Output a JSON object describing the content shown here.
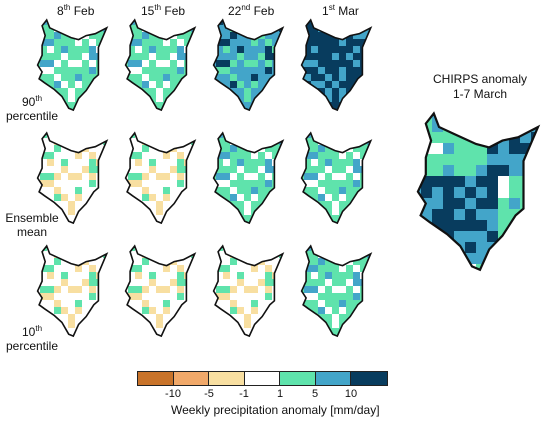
{
  "columns": [
    {
      "base": "8",
      "sup": "th",
      "rest": " Feb"
    },
    {
      "base": "15",
      "sup": "th",
      "rest": " Feb"
    },
    {
      "base": "22",
      "sup": "nd",
      "rest": " Feb"
    },
    {
      "base": "1",
      "sup": "st",
      "rest": " Mar"
    }
  ],
  "rows": [
    {
      "line1_base": "90",
      "line1_sup": "th",
      "line2": "percentile"
    },
    {
      "line1_base": "Ensemble",
      "line1_sup": "",
      "line2": "mean"
    },
    {
      "line1_base": "10",
      "line1_sup": "th",
      "line2": "percentile"
    }
  ],
  "chirps": {
    "line1": "CHIRPS anomaly",
    "line2": "1-7 March"
  },
  "colorbar": {
    "colors": [
      "#c8732a",
      "#f1a96a",
      "#f8dfa1",
      "#ffffff",
      "#5fe3ac",
      "#43a5c9",
      "#083c5e"
    ],
    "ticks": [
      "-10",
      "-5",
      "-1",
      "1",
      "5",
      "10"
    ],
    "title": "Weekly precipitation anomaly [mm/day]"
  },
  "maps": {
    "r0c0": {
      "dominant": "#5fe3ac",
      "description": "90th percentile 8 Feb"
    },
    "r0c1": {
      "dominant": "#5fe3ac",
      "description": "90th percentile 15 Feb"
    },
    "r0c2": {
      "dominant": "#43a5c9",
      "description": "90th percentile 22 Feb"
    },
    "r0c3": {
      "dominant": "#083c5e",
      "description": "90th percentile 1 Mar"
    },
    "r1c0": {
      "dominant": "#ffffff",
      "description": "Ensemble mean 8 Feb"
    },
    "r1c1": {
      "dominant": "#ffffff",
      "description": "Ensemble mean 15 Feb"
    },
    "r1c2": {
      "dominant": "#5fe3ac",
      "description": "Ensemble mean 22 Feb"
    },
    "r1c3": {
      "dominant": "#5fe3ac",
      "description": "Ensemble mean 1 Mar"
    },
    "r2c0": {
      "dominant": "#ffffff",
      "description": "10th percentile 8 Feb"
    },
    "r2c1": {
      "dominant": "#ffffff",
      "description": "10th percentile 15 Feb"
    },
    "r2c2": {
      "dominant": "#ffffff",
      "description": "10th percentile 22 Feb"
    },
    "r2c3": {
      "dominant": "#5fe3ac",
      "description": "10th percentile 1 Mar"
    },
    "chirps": {
      "dominant": "#5fe3ac",
      "description": "CHIRPS anomaly 1-7 March"
    }
  }
}
